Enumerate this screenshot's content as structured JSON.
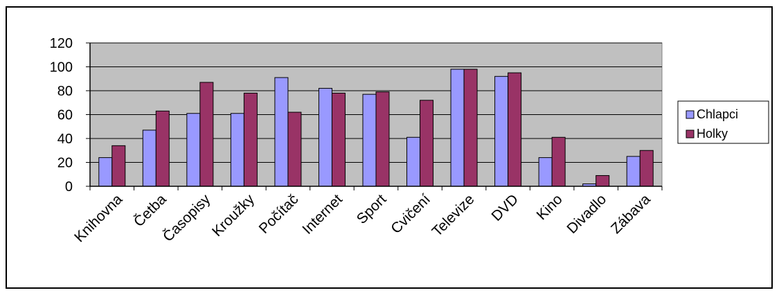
{
  "chart_data": {
    "type": "bar",
    "categories": [
      "Knihovna",
      "Četba",
      "Časopisy",
      "Kroužky",
      "Počítač",
      "Internet",
      "Sport",
      "Cvičení",
      "Televize",
      "DVD",
      "Kino",
      "Divadlo",
      "Zábava"
    ],
    "series": [
      {
        "name": "Chlapci",
        "color": "#9999ff",
        "values": [
          24,
          47,
          61,
          61,
          91,
          82,
          77,
          41,
          98,
          92,
          24,
          2,
          25
        ]
      },
      {
        "name": "Holky",
        "color": "#993366",
        "values": [
          34,
          63,
          87,
          78,
          62,
          78,
          79,
          72,
          98,
          95,
          41,
          9,
          30
        ]
      }
    ],
    "yticks": [
      0,
      20,
      40,
      60,
      80,
      100,
      120
    ],
    "ylim": [
      0,
      120
    ],
    "plot_background": "#c0c0c0",
    "grid": true,
    "legend_position": "right"
  }
}
